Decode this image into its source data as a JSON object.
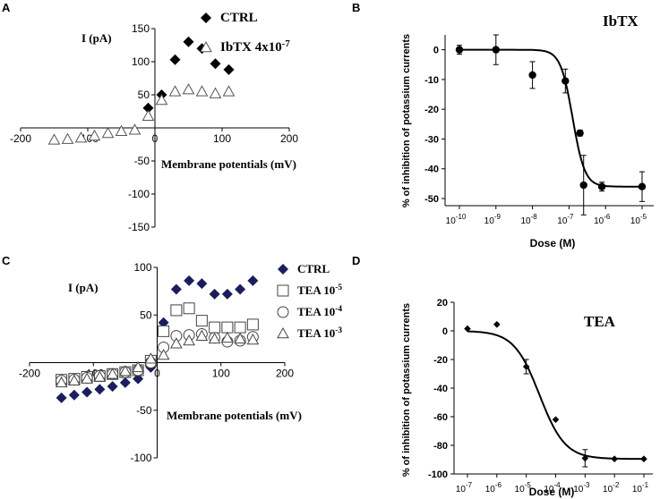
{
  "chart_data": [
    {
      "panel": "A",
      "type": "scatter",
      "xlabel": "Membrane potentials (mV)",
      "ylabel": "I (pA)",
      "xlim": [
        -200,
        200
      ],
      "ylim": [
        -150,
        150
      ],
      "xticks": [
        -200,
        -100,
        0,
        100,
        200
      ],
      "yticks": [
        -150,
        -100,
        -50,
        0,
        50,
        100,
        150
      ],
      "grid": false,
      "legend_position": "top-right",
      "series": [
        {
          "name": "CTRL",
          "marker": "filled-diamond",
          "color": "#000000",
          "x": [
            -10,
            10,
            30,
            50,
            70,
            90,
            110
          ],
          "y": [
            30,
            50,
            103,
            130,
            120,
            97,
            88
          ]
        },
        {
          "name": "IbTX 4x10",
          "superscript": "-7",
          "marker": "open-triangle",
          "color": "#555555",
          "x": [
            -150,
            -130,
            -110,
            -90,
            -70,
            -50,
            -30,
            -10,
            10,
            30,
            50,
            70,
            90,
            110
          ],
          "y": [
            -18,
            -17,
            -15,
            -12,
            -8,
            -5,
            -3,
            18,
            42,
            55,
            58,
            55,
            52,
            55
          ]
        }
      ]
    },
    {
      "panel": "B",
      "type": "scatter",
      "title": "IbTX",
      "xlabel": "Dose (M)",
      "ylabel": "% of inhibition of potassium currents",
      "xscale": "log",
      "xtick_base": "10",
      "xtick_exponents": [
        "-10",
        "-9",
        "-8",
        "-7",
        "-6",
        "-5"
      ],
      "yticks": [
        0,
        -10,
        -20,
        -30,
        -40,
        -50
      ],
      "ylim": [
        -50,
        5
      ],
      "fit": "sigmoid",
      "fit_params": {
        "top": 0,
        "bottom": -46,
        "log_ec50": -6.9,
        "hill": 2.6
      },
      "series": [
        {
          "name": "IbTX",
          "marker": "filled-circle",
          "color": "#000000",
          "log_dose": [
            -10,
            -9,
            -8,
            -7.1,
            -6.7,
            -6.6,
            -6.1,
            -5
          ],
          "values": [
            0,
            0,
            -8.5,
            -10.5,
            -28,
            -45.5,
            -46,
            -46
          ],
          "errors": [
            1.5,
            5,
            4.5,
            4,
            1,
            10,
            1.5,
            5
          ]
        }
      ]
    },
    {
      "panel": "C",
      "type": "scatter",
      "xlabel": "Membrane potentials (mV)",
      "ylabel": "I (pA)",
      "xlim": [
        -200,
        200
      ],
      "ylim": [
        -100,
        100
      ],
      "xticks": [
        -200,
        -100,
        0,
        100,
        200
      ],
      "yticks": [
        -100,
        -50,
        0,
        50,
        100
      ],
      "grid": false,
      "legend_position": "top-right",
      "series": [
        {
          "name": "CTRL",
          "marker": "filled-diamond",
          "color": "#1c1d5c",
          "x": [
            -150,
            -130,
            -110,
            -90,
            -70,
            -50,
            -30,
            -10,
            10,
            30,
            50,
            70,
            90,
            110,
            130,
            150
          ],
          "y": [
            -37,
            -34,
            -31,
            -28,
            -25,
            -21,
            -17,
            -5,
            42,
            77,
            86,
            83,
            72,
            72,
            77,
            86
          ]
        },
        {
          "name": "TEA 10",
          "superscript": "-5",
          "marker": "open-square",
          "color": "#444444",
          "x": [
            -150,
            -130,
            -110,
            -90,
            -70,
            -50,
            -30,
            -10,
            10,
            30,
            50,
            70,
            90,
            110,
            130,
            150
          ],
          "y": [
            -18,
            -17,
            -15,
            -14,
            -12,
            -10,
            -8,
            2,
            33,
            55,
            57,
            44,
            37,
            37,
            37,
            40
          ]
        },
        {
          "name": "TEA 10",
          "superscript": "-4",
          "marker": "open-circle",
          "color": "#444444",
          "x": [
            -150,
            -130,
            -110,
            -90,
            -70,
            -50,
            -30,
            -10,
            10,
            30,
            50,
            70,
            90,
            110,
            130,
            150
          ],
          "y": [
            -19,
            -18,
            -16,
            -14,
            -12,
            -10,
            -8,
            0,
            16,
            28,
            29,
            30,
            26,
            22,
            23,
            27
          ]
        },
        {
          "name": "TEA 10",
          "superscript": "-3",
          "marker": "open-triangle",
          "color": "#444444",
          "x": [
            -150,
            -130,
            -110,
            -90,
            -70,
            -50,
            -30,
            -10,
            10,
            30,
            50,
            70,
            90,
            110,
            130,
            150
          ],
          "y": [
            -21,
            -19,
            -17,
            -15,
            -12,
            -9,
            -5,
            4,
            8,
            20,
            23,
            28,
            25,
            26,
            25,
            24
          ]
        }
      ]
    },
    {
      "panel": "D",
      "type": "scatter",
      "title": "TEA",
      "xlabel": "Dose (M)",
      "ylabel": "% of inhibition of potassium currents",
      "xscale": "log",
      "xtick_base": "10",
      "xtick_exponents": [
        "-7",
        "-6",
        "-5",
        "-4",
        "-3",
        "-2",
        "-1"
      ],
      "yticks": [
        20,
        0,
        -20,
        -40,
        -60,
        -80,
        -100
      ],
      "ylim": [
        -100,
        20
      ],
      "fit": "sigmoid",
      "fit_params": {
        "top": 0,
        "bottom": -89.5,
        "log_ec50": -4.55,
        "hill": 1.0
      },
      "series": [
        {
          "name": "TEA",
          "marker": "filled-diamond",
          "color": "#000000",
          "log_dose": [
            -7,
            -6,
            -5,
            -4,
            -3,
            -2,
            -1
          ],
          "values": [
            1.5,
            4.5,
            -25,
            -62,
            -89,
            -89.5,
            -89.5
          ],
          "errors": [
            0,
            0,
            5,
            0,
            6,
            0,
            0
          ]
        }
      ]
    }
  ]
}
